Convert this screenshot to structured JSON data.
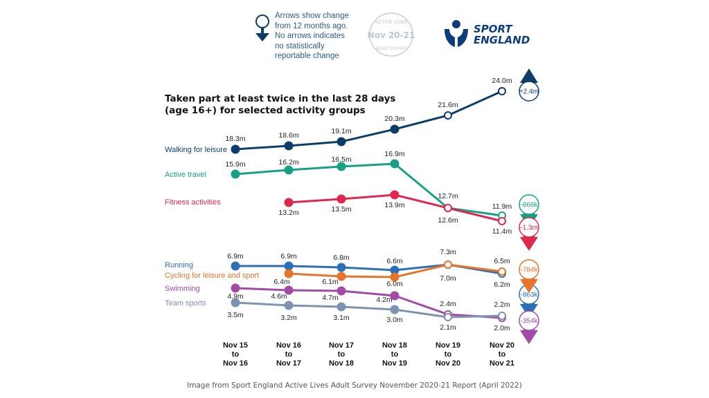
{
  "title_line1": "Taken part at least twice in the last 28 days",
  "title_line2": "(age 16+) for selected activity groups",
  "legend": {
    "line1": "Arrows show change",
    "line2": "from 12 months ago.",
    "line3": "No arrows indicates",
    "line4": "no statistically",
    "line5": "reportable change"
  },
  "badge": {
    "top": "ACTIVE LIVES",
    "middle": "Nov 20-21",
    "bottom": "ADULT SURVEY"
  },
  "logo": {
    "line1": "SPORT",
    "line2": "ENGLAND",
    "color": "#0b3d7a"
  },
  "credit": "Image from Sport England Active Lives Adult Survey November 2020-21 Report (April 2022)",
  "chart_data": {
    "type": "line",
    "categories": [
      [
        "Nov 15",
        "to",
        "Nov 16"
      ],
      [
        "Nov 16",
        "to",
        "Nov 17"
      ],
      [
        "Nov 17",
        "to",
        "Nov 18"
      ],
      [
        "Nov 18",
        "to",
        "Nov 19"
      ],
      [
        "Nov 19",
        "to",
        "Nov 20"
      ],
      [
        "Nov 20",
        "to",
        "Nov 21"
      ]
    ],
    "panels": [
      {
        "series": [
          {
            "name": "Walking for leisure",
            "color": "#0b3d6b",
            "values": [
              18.3,
              18.6,
              19.1,
              20.3,
              21.6,
              24.0
            ],
            "labels": [
              "18.3m",
              "18.6m",
              "19.1m",
              "20.3m",
              "21.6m",
              "24.0m"
            ],
            "change": {
              "text": "+2.4m",
              "direction": "up"
            }
          },
          {
            "name": "Active travel",
            "color": "#16a085",
            "values": [
              15.9,
              16.2,
              16.5,
              16.9,
              12.7,
              11.9
            ],
            "labels": [
              "15.9m",
              "16.2m",
              "16.5m",
              "16.9m",
              "12.7m",
              "11.9m"
            ],
            "change": {
              "text": "-666k",
              "direction": "down"
            }
          },
          {
            "name": "Fitness activities",
            "color": "#e0284f",
            "values": [
              null,
              13.2,
              13.5,
              13.9,
              12.6,
              11.4
            ],
            "labels": [
              "",
              "13.2m",
              "13.5m",
              "13.9m",
              "12.6m",
              "11.4m"
            ],
            "change": {
              "text": "-1.3m",
              "direction": "down"
            }
          }
        ]
      },
      {
        "series": [
          {
            "name": "Running",
            "color": "#2a6fb8",
            "values": [
              6.9,
              6.9,
              6.8,
              6.6,
              7.0,
              6.2
            ],
            "labels": [
              "6.9m",
              "6.9m",
              "6.8m",
              "6.6m",
              "7.0m",
              "6.2m"
            ],
            "change": {
              "text": "-863k",
              "direction": "down"
            }
          },
          {
            "name": "Cycling for leisure and sport",
            "color": "#e8732a",
            "values": [
              null,
              6.4,
              6.1,
              6.0,
              7.3,
              6.5
            ],
            "labels": [
              "",
              "6.4m",
              "6.1m",
              "6.0m",
              "7.3m",
              "6.5m"
            ],
            "change": {
              "text": "-784k",
              "direction": "down"
            }
          },
          {
            "name": "Swimming",
            "color": "#a24aa6",
            "values": [
              4.9,
              4.6,
              4.7,
              4.2,
              2.4,
              2.0
            ],
            "labels": [
              "4.9m",
              "4.6m",
              "4.7m",
              "4.2m",
              "2.4m",
              "2.0m"
            ],
            "change": {
              "text": "-354k",
              "direction": "down"
            }
          },
          {
            "name": "Team sports",
            "color": "#7d93b2",
            "values": [
              3.5,
              3.2,
              3.1,
              3.0,
              2.1,
              2.2
            ],
            "labels": [
              "3.5m",
              "3.2m",
              "3.1m",
              "3.0m",
              "2.1m",
              "2.2m"
            ],
            "change": null
          }
        ]
      }
    ]
  }
}
